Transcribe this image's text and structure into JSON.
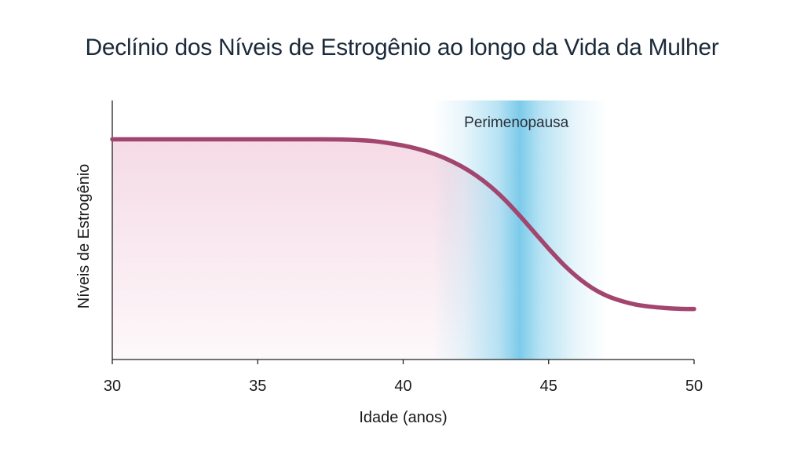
{
  "chart_data": {
    "type": "line",
    "title": "Declínio dos Níveis de Estrogênio ao longo da Vida da Mulher",
    "xlabel": "Idade (anos)",
    "ylabel": "Níveis de Estrogênio",
    "xlim": [
      30,
      50
    ],
    "ylim": [
      0,
      100
    ],
    "x_ticks": [
      30,
      35,
      40,
      45,
      50
    ],
    "y_ticks_shown": false,
    "grid": false,
    "legend": "none",
    "series": [
      {
        "color": "#a3466f",
        "x": [
          30,
          32,
          34,
          36,
          37,
          38,
          39,
          40,
          40.5,
          41,
          41.5,
          42,
          42.5,
          43,
          43.5,
          44,
          44.5,
          45,
          45.5,
          46,
          46.5,
          47,
          47.5,
          48,
          48.5,
          49,
          49.5,
          50
        ],
        "y": [
          85,
          85,
          85,
          85,
          85,
          84.9,
          84.3,
          82.6,
          81.3,
          79.6,
          77.4,
          74.6,
          71.1,
          66.8,
          61.6,
          55.6,
          49.2,
          42.8,
          36.8,
          31.7,
          27.6,
          24.6,
          22.6,
          21.2,
          20.4,
          19.9,
          19.6,
          19.5
        ]
      }
    ],
    "annotations": [
      {
        "text": "Perimenopausa",
        "x_range": [
          41,
          47
        ],
        "x_peak": 44,
        "color": "#7ccbea"
      }
    ],
    "area_fill_color": "#f3d4e1"
  }
}
